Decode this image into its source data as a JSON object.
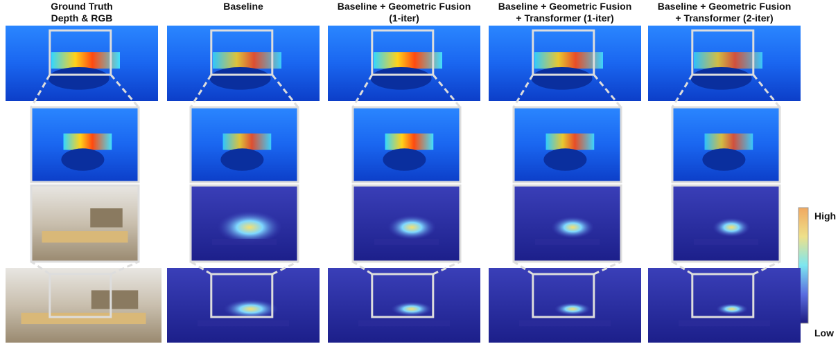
{
  "columns": [
    {
      "lines": [
        "Ground Truth",
        "Depth & RGB"
      ]
    },
    {
      "lines": [
        "Baseline"
      ]
    },
    {
      "lines": [
        "Baseline + Geometric Fusion",
        "(1-iter)"
      ]
    },
    {
      "lines": [
        "Baseline + Geometric Fusion",
        "+ Transformer (1-iter)"
      ]
    },
    {
      "lines": [
        "Baseline + Geometric Fusion",
        "+ Transformer (2-iter)"
      ]
    }
  ],
  "colorbar": {
    "high": "High",
    "low": "Low"
  }
}
